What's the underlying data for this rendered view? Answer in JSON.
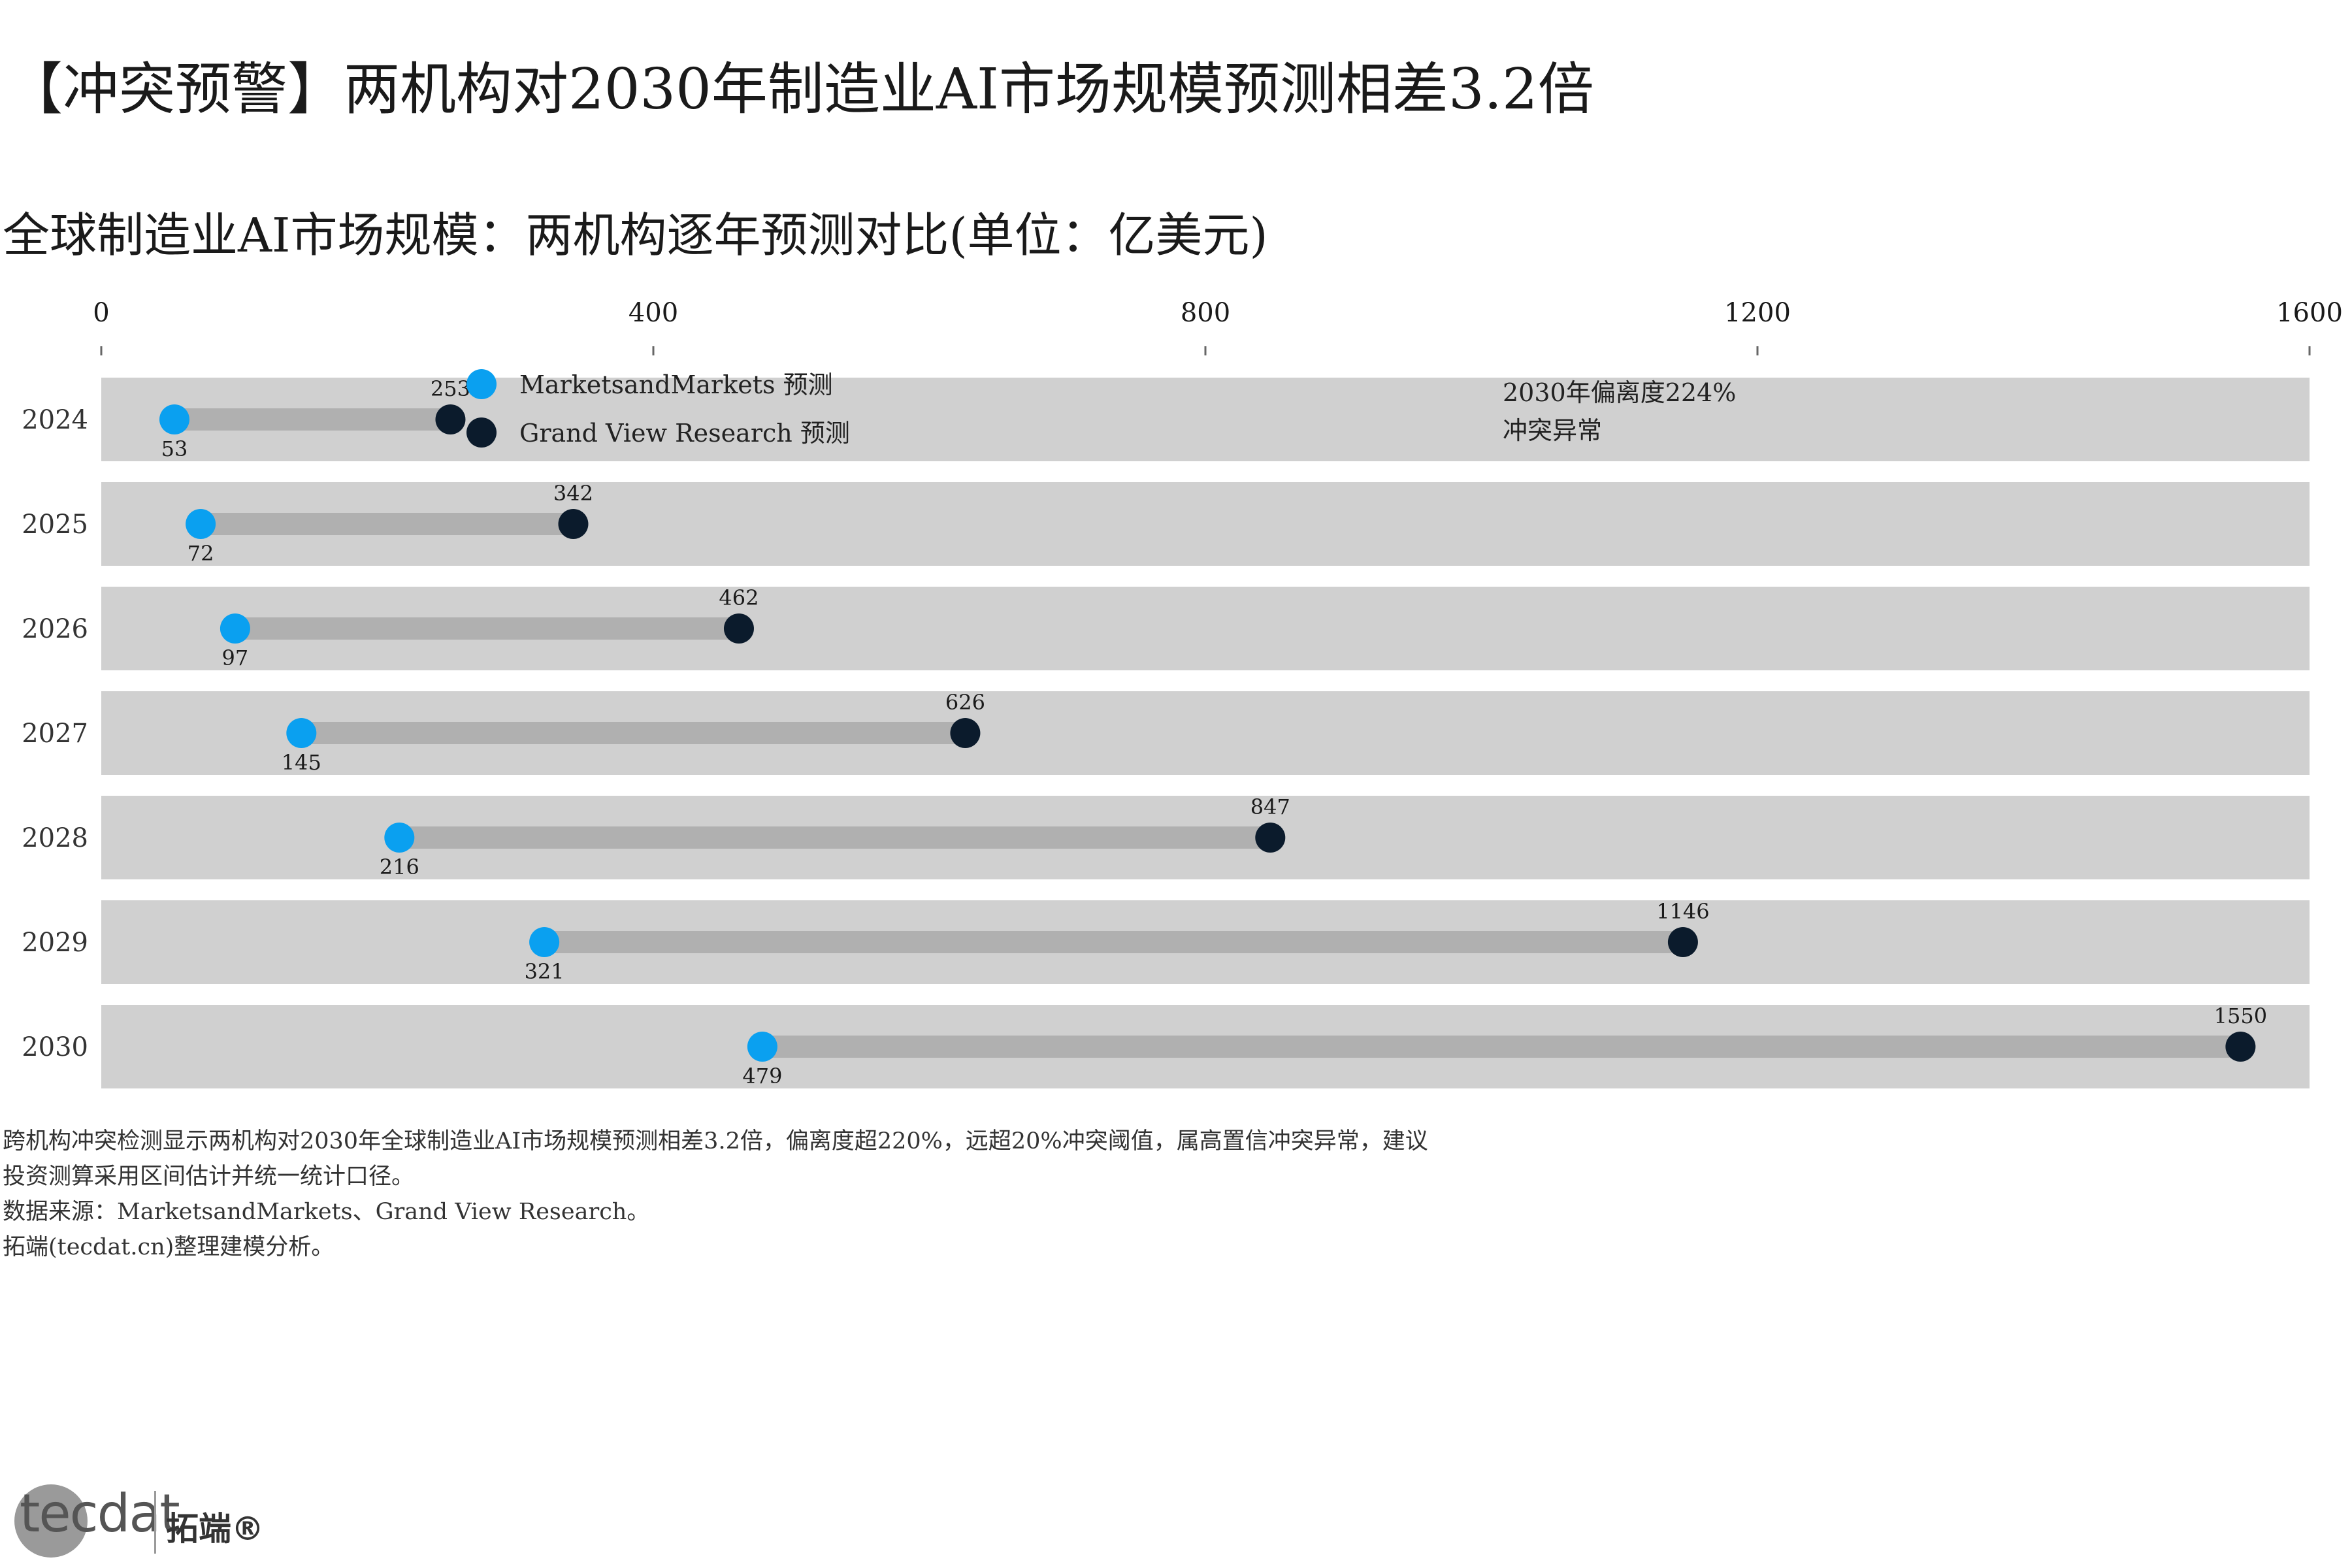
{
  "headline": "【冲突预警】两机构对2030年制造业AI市场规模预测相差3.2倍",
  "chart_data": {
    "type": "dumbbell",
    "title": "全球制造业AI市场规模：两机构逐年预测对比(单位：亿美元)",
    "xlim": [
      0,
      1600
    ],
    "xticks": [
      0,
      400,
      800,
      1200,
      1600
    ],
    "categories": [
      "2024",
      "2025",
      "2026",
      "2027",
      "2028",
      "2029",
      "2030"
    ],
    "series": [
      {
        "name": "MarketsandMarkets 预测",
        "color": "#0aa0f0",
        "values": [
          53,
          72,
          97,
          145,
          216,
          321,
          479
        ]
      },
      {
        "name": "Grand View Research 预测",
        "color": "#0b1b2c",
        "values": [
          253,
          342,
          462,
          626,
          847,
          1146,
          1550
        ]
      }
    ],
    "legend_position": "top-left",
    "annotation": {
      "lines": [
        "2030年偏离度224%",
        "冲突异常"
      ],
      "x": 1015,
      "category": "2024"
    },
    "colors": {
      "band": "#d0d0d0",
      "connector": "#b0b0b0"
    }
  },
  "caption": [
    "跨机构冲突检测显示两机构对2030年全球制造业AI市场规模预测相差3.2倍，偏离度超220%，远超20%冲突阈值，属高置信冲突异常，建议",
    "投资测算采用区间估计并统一统计口径。",
    "数据来源：MarketsandMarkets、Grand View Research。",
    "拓端(tecdat.cn)整理建模分析。"
  ],
  "logo": {
    "text": "tecdat",
    "cn": "拓端®"
  }
}
